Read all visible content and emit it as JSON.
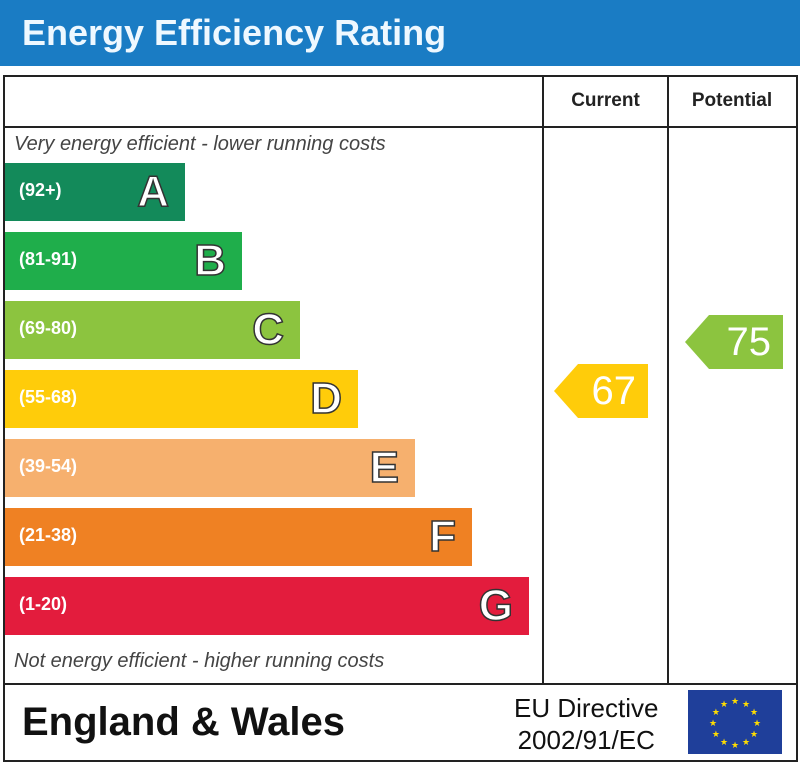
{
  "header": {
    "title": "Energy Efficiency Rating"
  },
  "columns": {
    "current": "Current",
    "potential": "Potential"
  },
  "notes": {
    "top": "Very energy efficient - lower running costs",
    "bottom": "Not energy efficient - higher running costs"
  },
  "chart_data": {
    "type": "bar",
    "title": "Energy Efficiency Rating",
    "bands": [
      {
        "letter": "A",
        "range": "(92+)",
        "color": "#138a5a"
      },
      {
        "letter": "B",
        "range": "(81-91)",
        "color": "#1fae4b"
      },
      {
        "letter": "C",
        "range": "(69-80)",
        "color": "#8cc43f"
      },
      {
        "letter": "D",
        "range": "(55-68)",
        "color": "#ffcc0a"
      },
      {
        "letter": "E",
        "range": "(39-54)",
        "color": "#f6b06e"
      },
      {
        "letter": "F",
        "range": "(21-38)",
        "color": "#ef8123"
      },
      {
        "letter": "G",
        "range": "(1-20)",
        "color": "#e31c3d"
      }
    ],
    "current": {
      "value": 67,
      "band": "D",
      "color": "#ffcc0a"
    },
    "potential": {
      "value": 75,
      "band": "C",
      "color": "#8cc43f"
    }
  },
  "footer": {
    "region": "England & Wales",
    "directive_line1": "EU Directive",
    "directive_line2": "2002/91/EC",
    "flag_icon": "eu-flag-icon"
  }
}
